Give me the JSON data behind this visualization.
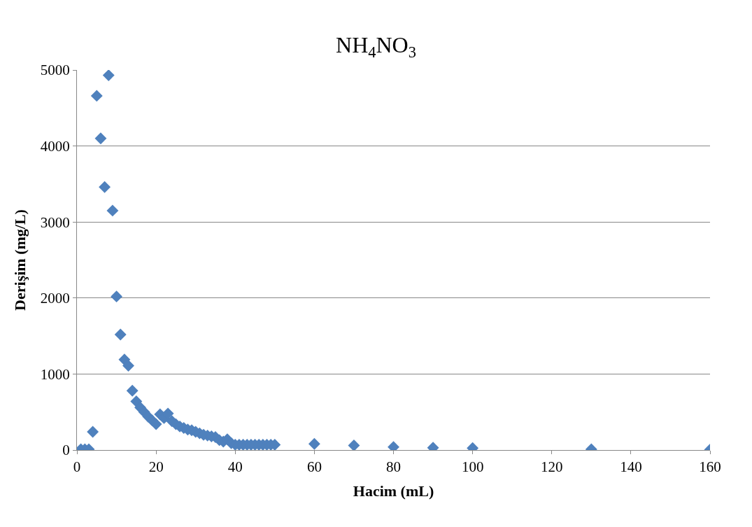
{
  "chart_data": {
    "type": "scatter",
    "title": "NH$_{4}$NO$_{3}$",
    "xlabel": "Hacim (mL)",
    "ylabel": "Derişim (mg/L)",
    "x": [
      1,
      2,
      3,
      4,
      5,
      6,
      7,
      8,
      9,
      10,
      11,
      12,
      13,
      14,
      15,
      16,
      17,
      18,
      19,
      20,
      21,
      22,
      23,
      24,
      25,
      26,
      27,
      28,
      29,
      30,
      31,
      32,
      33,
      34,
      35,
      36,
      37,
      38,
      39,
      40,
      41,
      42,
      43,
      44,
      45,
      46,
      47,
      48,
      49,
      50,
      60,
      70,
      80,
      90,
      100,
      130,
      160
    ],
    "series": [
      {
        "color": "#4f81bd",
        "values": [
          10,
          10,
          10,
          240,
          4660,
          4100,
          3460,
          4930,
          3150,
          2020,
          1520,
          1190,
          1110,
          780,
          640,
          560,
          500,
          440,
          390,
          340,
          470,
          420,
          480,
          380,
          340,
          310,
          290,
          270,
          260,
          240,
          220,
          200,
          190,
          180,
          170,
          130,
          110,
          140,
          90,
          70,
          70,
          70,
          70,
          70,
          70,
          70,
          70,
          70,
          70,
          70,
          80,
          60,
          40,
          30,
          25,
          10,
          5
        ]
      }
    ],
    "xlim": [
      0,
      160
    ],
    "xticks": [
      0,
      20,
      40,
      60,
      80,
      100,
      120,
      140,
      160
    ],
    "ylim": [
      0,
      5000
    ],
    "yticks": [
      0,
      1000,
      2000,
      3000,
      4000,
      5000
    ],
    "grid": "y",
    "marker": "diamond",
    "legend": false
  }
}
